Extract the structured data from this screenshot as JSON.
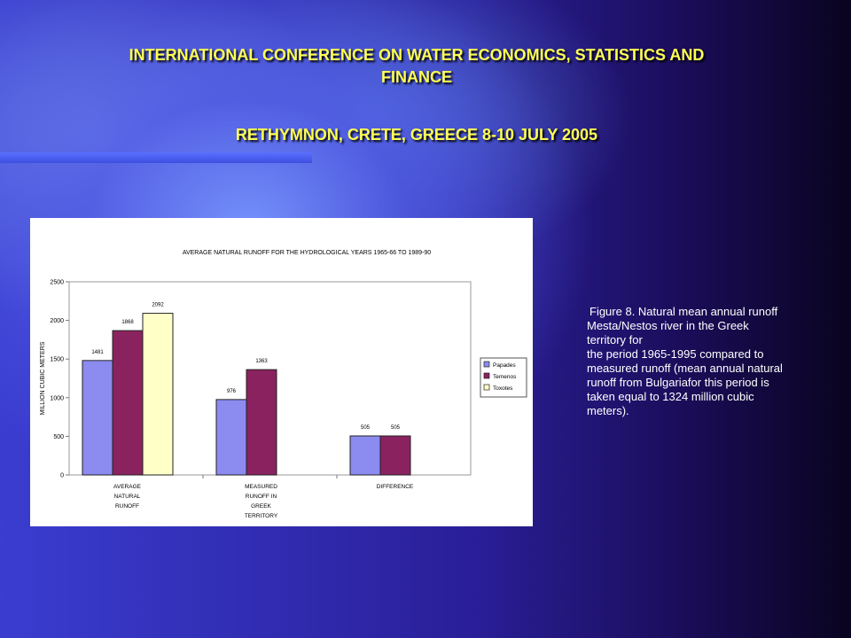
{
  "slide": {
    "title_line1": "INTERNATIONAL CONFERENCE ON WATER ECONOMICS, STATISTICS AND",
    "title_line2": "FINANCE",
    "subtitle": "RETHYMNON, CRETE, GREECE 8-10 JULY 2005",
    "caption_lines": [
      "Figure 8.  Natural mean annual runoff",
      "Mesta/Nestos river  in the Greek",
      "territory  for",
      "the period 1965-1995 compared to",
      "measured runoff (mean annual natural",
      "runoff from Bulgariafor this period is",
      "taken equal to 1324 million cubic",
      "meters)."
    ]
  },
  "colors": {
    "title": "#ffff55",
    "Papades": "#8b8bf0",
    "Temenos": "#8b2260",
    "Toxotes": "#ffffc8"
  },
  "chart_data": {
    "type": "bar",
    "title": "AVERAGE   NATURAL   RUNOFF   FOR THE HYDROLOGICAL YEARS  1965-66 TO 1989-90",
    "ylabel": "MILLION CUBIC METERS",
    "xlabel": "",
    "ylim": [
      0,
      2500
    ],
    "yticks": [
      0,
      500,
      1000,
      1500,
      2000,
      2500
    ],
    "categories": [
      [
        "AVERAGE",
        "NATURAL",
        "RUNOFF"
      ],
      [
        "MEASURED",
        "RUNOFF    IN",
        "GREEK",
        "TERRITORY"
      ],
      [
        "DIFFERENCE"
      ]
    ],
    "series": [
      {
        "name": "Papades",
        "values": [
          1481,
          976,
          505
        ],
        "labels": [
          "1481",
          "976",
          "505"
        ]
      },
      {
        "name": "Temenos",
        "values": [
          1868,
          1363,
          505
        ],
        "labels": [
          "1868",
          "1363",
          "505"
        ]
      },
      {
        "name": "Toxotes",
        "values": [
          2092,
          null,
          null
        ],
        "labels": [
          "2092",
          "",
          ""
        ]
      }
    ],
    "legend_position": "right",
    "grid": false
  }
}
